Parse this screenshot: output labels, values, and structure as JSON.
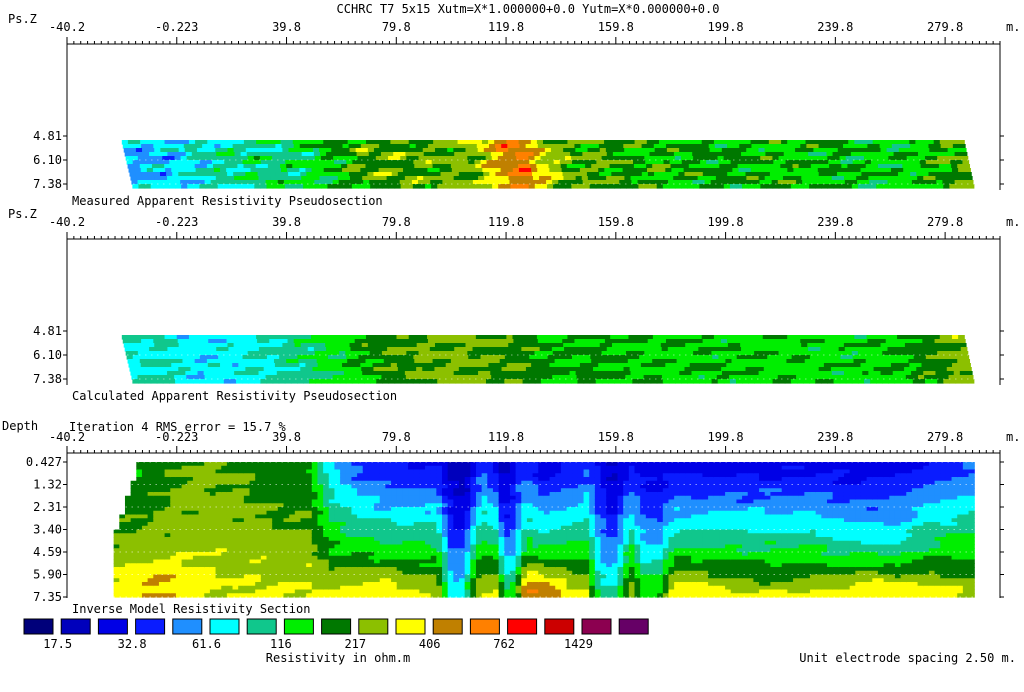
{
  "title": "CCHRC T7 5x15  Xutm=X*1.000000+0.0 Yutm=X*0.000000+0.0",
  "chart_data": [
    {
      "type": "heatmap",
      "id": "measured",
      "caption": "Measured Apparent Resistivity Pseudosection",
      "ylabel": "Ps.Z",
      "xunit": "m.",
      "x_ticks": [
        "-40.2",
        "-0.223",
        "39.8",
        "79.8",
        "119.8",
        "159.8",
        "199.8",
        "239.8",
        "279.8"
      ],
      "x_tick_values": [
        -40.2,
        -0.223,
        39.8,
        79.8,
        119.8,
        159.8,
        199.8,
        239.8,
        279.8
      ],
      "xlim": [
        -40.2,
        299.8
      ],
      "y_ticks": [
        "4.81",
        "6.10",
        "7.38"
      ],
      "y_tick_values": [
        4.81,
        6.1,
        7.38
      ],
      "ylim": [
        0,
        7.38
      ],
      "data_xrange_top": [
        -20.4,
        286.6
      ],
      "data_xrange_bottom": [
        -16.2,
        290.4
      ],
      "profile": [
        [
          -20,
          4.3
        ],
        [
          -6,
          4.6
        ],
        [
          2,
          5.1
        ],
        [
          14,
          5.7
        ],
        [
          28,
          6.2
        ],
        [
          38,
          6.3
        ],
        [
          46,
          6.6
        ],
        [
          56,
          7.4
        ],
        [
          66,
          8.4
        ],
        [
          78,
          8.6
        ],
        [
          92,
          8.5
        ],
        [
          106,
          8.8
        ],
        [
          114,
          10.6
        ],
        [
          120,
          11.4
        ],
        [
          124,
          11.9
        ],
        [
          130,
          10.2
        ],
        [
          134,
          9.3
        ],
        [
          142,
          8.3
        ],
        [
          152,
          8.4
        ],
        [
          164,
          7.8
        ],
        [
          178,
          7.6
        ],
        [
          196,
          7.6
        ],
        [
          214,
          7.5
        ],
        [
          232,
          7.4
        ],
        [
          250,
          7.2
        ],
        [
          262,
          6.9
        ],
        [
          272,
          7.6
        ],
        [
          282,
          8.3
        ],
        [
          290,
          8.6
        ]
      ],
      "variation": 0.8
    },
    {
      "type": "heatmap",
      "id": "calculated",
      "caption": "Calculated Apparent Resistivity Pseudosection",
      "ylabel": "Ps.Z",
      "xunit": "m.",
      "x_ticks": [
        "-40.2",
        "-0.223",
        "39.8",
        "79.8",
        "119.8",
        "159.8",
        "199.8",
        "239.8",
        "279.8"
      ],
      "x_tick_values": [
        -40.2,
        -0.223,
        39.8,
        79.8,
        119.8,
        159.8,
        199.8,
        239.8,
        279.8
      ],
      "xlim": [
        -40.2,
        299.8
      ],
      "y_ticks": [
        "4.81",
        "6.10",
        "7.38"
      ],
      "y_tick_values": [
        4.81,
        6.1,
        7.38
      ],
      "ylim": [
        0,
        7.38
      ],
      "data_xrange_top": [
        -20.4,
        286.6
      ],
      "data_xrange_bottom": [
        -16.2,
        290.4
      ],
      "profile": [
        [
          -20,
          5.4
        ],
        [
          -6,
          5.6
        ],
        [
          4,
          4.9
        ],
        [
          16,
          5.0
        ],
        [
          28,
          5.4
        ],
        [
          38,
          5.8
        ],
        [
          46,
          6.3
        ],
        [
          58,
          7.0
        ],
        [
          70,
          7.9
        ],
        [
          84,
          8.6
        ],
        [
          98,
          8.7
        ],
        [
          110,
          8.5
        ],
        [
          120,
          8.3
        ],
        [
          130,
          7.8
        ],
        [
          140,
          7.4
        ],
        [
          150,
          7.6
        ],
        [
          164,
          7.4
        ],
        [
          182,
          7.3
        ],
        [
          200,
          7.3
        ],
        [
          220,
          7.2
        ],
        [
          240,
          7.1
        ],
        [
          258,
          7.4
        ],
        [
          272,
          8.0
        ],
        [
          284,
          8.9
        ],
        [
          290,
          9.0
        ]
      ],
      "variation": 0.5
    },
    {
      "type": "heatmap",
      "id": "inverse",
      "caption": "Inverse Model Resistivity Section",
      "ylabel": "Depth",
      "subtitle": "Iteration 4 RMS error = 15.7 %",
      "xunit": "m.",
      "x_ticks": [
        "-40.2",
        "-0.223",
        "39.8",
        "79.8",
        "119.8",
        "159.8",
        "199.8",
        "239.8",
        "279.8"
      ],
      "x_tick_values": [
        -40.2,
        -0.223,
        39.8,
        79.8,
        119.8,
        159.8,
        199.8,
        239.8,
        279.8
      ],
      "xlim": [
        -40.2,
        299.8
      ],
      "y_ticks": [
        "0.427",
        "1.32",
        "2.31",
        "3.40",
        "4.59",
        "5.90",
        "7.35"
      ],
      "y_tick_values": [
        0.427,
        1.32,
        2.31,
        3.4,
        4.59,
        5.9,
        7.35
      ],
      "ylim": [
        0,
        7.35
      ],
      "data_xrange": [
        -23.2,
        290.4
      ],
      "top_profile": [
        [
          -22,
          7.2
        ],
        [
          -10,
          7.8
        ],
        [
          0,
          8.4
        ],
        [
          10,
          8.6
        ],
        [
          24,
          8.4
        ],
        [
          36,
          7.9
        ],
        [
          48,
          7.6
        ],
        [
          56,
          4.6
        ],
        [
          66,
          3.1
        ],
        [
          80,
          2.6
        ],
        [
          96,
          2.4
        ],
        [
          106,
          1.4
        ],
        [
          112,
          3.2
        ],
        [
          118,
          1.6
        ],
        [
          124,
          3.4
        ],
        [
          134,
          1.8
        ],
        [
          144,
          2.6
        ],
        [
          152,
          3.4
        ],
        [
          158,
          1.8
        ],
        [
          168,
          2.5
        ],
        [
          180,
          2.1
        ],
        [
          196,
          2.0
        ],
        [
          212,
          2.0
        ],
        [
          228,
          2.0
        ],
        [
          244,
          2.1
        ],
        [
          260,
          2.2
        ],
        [
          274,
          2.6
        ],
        [
          286,
          3.2
        ],
        [
          290,
          3.4
        ]
      ],
      "gradient_mid": 9.6,
      "gradient_scale": 1.15,
      "low_zones": [
        [
          100,
          104,
          5,
          -2.2
        ],
        [
          120,
          123,
          4,
          -2.0
        ],
        [
          154,
          160,
          5,
          -1.8
        ],
        [
          170,
          176,
          5,
          -1.3
        ],
        [
          244,
          262,
          12,
          -0.6
        ]
      ],
      "high_zones": [
        [
          -8,
          6.6,
          14,
          1.2
        ],
        [
          72,
          6.8,
          14,
          1.0
        ],
        [
          130,
          6.9,
          12,
          2.2
        ],
        [
          183,
          6.9,
          16,
          0.9
        ],
        [
          253,
          6.95,
          18,
          2.3
        ]
      ]
    }
  ],
  "legend": {
    "colors": [
      "#00007a",
      "#0000bc",
      "#0000e6",
      "#0a1cff",
      "#1f8fff",
      "#00ffff",
      "#10c78c",
      "#00ee00",
      "#007800",
      "#8cc000",
      "#ffff00",
      "#c08000",
      "#ff8000",
      "#ff0000",
      "#cc0000",
      "#8c0050",
      "#660066"
    ],
    "labels": [
      "17.5",
      "32.8",
      "61.6",
      "116",
      "217",
      "406",
      "762",
      "1429"
    ],
    "title": "Resistivity in ohm.m"
  },
  "footer": "Unit electrode spacing 2.50 m."
}
